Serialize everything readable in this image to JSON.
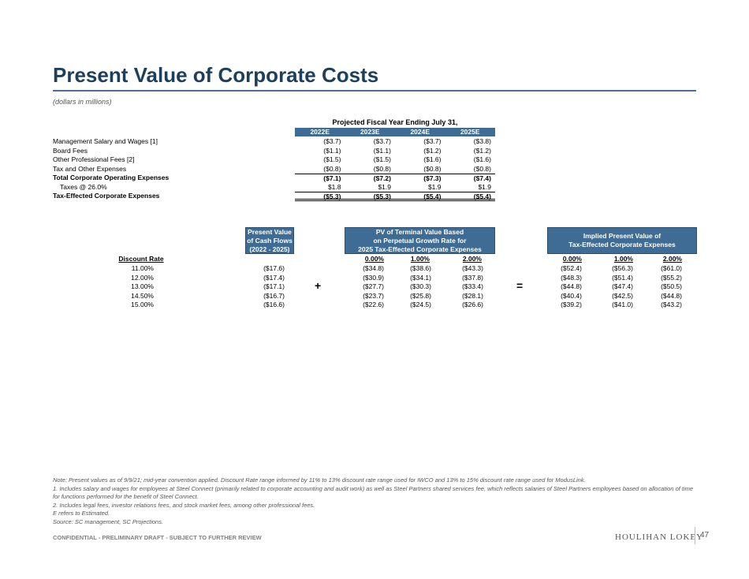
{
  "title": "Present Value of Corporate Costs",
  "subtitle": "(dollars in millions)",
  "projection": {
    "header": "Projected Fiscal Year Ending July 31,",
    "years": [
      "2022E",
      "2023E",
      "2024E",
      "2025E"
    ],
    "rows": [
      {
        "label": "Management Salary and Wages [1]",
        "values": [
          "($3.7)",
          "($3.7)",
          "($3.7)",
          "($3.8)"
        ]
      },
      {
        "label": "Board Fees",
        "values": [
          "($1.1)",
          "($1.1)",
          "($1.2)",
          "($1.2)"
        ]
      },
      {
        "label": "Other Professional Fees [2]",
        "values": [
          "($1.5)",
          "($1.5)",
          "($1.6)",
          "($1.6)"
        ]
      },
      {
        "label": "Tax and Other Expenses",
        "values": [
          "($0.8)",
          "($0.8)",
          "($0.8)",
          "($0.8)"
        ]
      },
      {
        "label": "Total Corporate Operating Expenses",
        "values": [
          "($7.1)",
          "($7.2)",
          "($7.3)",
          "($7.4)"
        ]
      },
      {
        "label": "Taxes @ 26.0%",
        "values": [
          "$1.8",
          "$1.9",
          "$1.9",
          "$1.9"
        ]
      },
      {
        "label": "Tax-Effected Corporate Expenses",
        "values": [
          "($5.3)",
          "($5.3)",
          "($5.4)",
          "($5.4)"
        ]
      }
    ]
  },
  "valuation": {
    "pv_header": [
      "Present Value",
      "of Cash Flows",
      "(2022 - 2025)"
    ],
    "tv_header": [
      "PV of Terminal Value Based",
      "on Perpetual Growth Rate for",
      "2025 Tax-Effected Corporate Expenses"
    ],
    "ipv_header": [
      "Implied Present Value of",
      "Tax-Effected Corporate Expenses"
    ],
    "discount_rate_label": "Discount Rate",
    "growth_rates": [
      "0.00%",
      "1.00%",
      "2.00%"
    ],
    "discount_rates": [
      "11.00%",
      "12.00%",
      "13.00%",
      "14.50%",
      "15.00%"
    ],
    "pv_values": [
      "($17.6)",
      "($17.4)",
      "($17.1)",
      "($16.7)",
      "($16.6)"
    ],
    "tv_values": [
      [
        "($34.8)",
        "($30.9)",
        "($27.7)",
        "($23.7)",
        "($22.6)"
      ],
      [
        "($38.6)",
        "($34.1)",
        "($30.3)",
        "($25.8)",
        "($24.5)"
      ],
      [
        "($43.3)",
        "($37.8)",
        "($33.4)",
        "($28.1)",
        "($26.6)"
      ]
    ],
    "ipv_values": [
      [
        "($52.4)",
        "($48.3)",
        "($44.8)",
        "($40.4)",
        "($39.2)"
      ],
      [
        "($56.3)",
        "($51.4)",
        "($47.4)",
        "($42.5)",
        "($41.0)"
      ],
      [
        "($61.0)",
        "($55.2)",
        "($50.5)",
        "($44.8)",
        "($43.2)"
      ]
    ],
    "plus_sign": "+",
    "equals_sign": "="
  },
  "notes": [
    "Note: Present values as of 9/9/21; mid-year convention applied. Discount Rate range informed by 11% to 13% discount rate range used for IWCO and 13% to 15% discount rate range used for ModusLink.",
    "1. Includes salary and wages for employees at Steel Connect (primarily related to corporate accounting and audit work) as well as Steel Partners shared services fee, which reflects salaries of Steel Partners employees based on allocation of time for functions performed for the benefit of Steel Connect.",
    "2. Includes legal fees, investor relations fees, and stock market fees, among other professional fees.",
    "E refers to Estimated.",
    "Source: SC management, SC Projections."
  ],
  "footer": {
    "confidential": "CONFIDENTIAL - PRELIMINARY DRAFT - SUBJECT TO FURTHER REVIEW",
    "logo": "HOULIHAN LOKEY",
    "page": "47"
  }
}
